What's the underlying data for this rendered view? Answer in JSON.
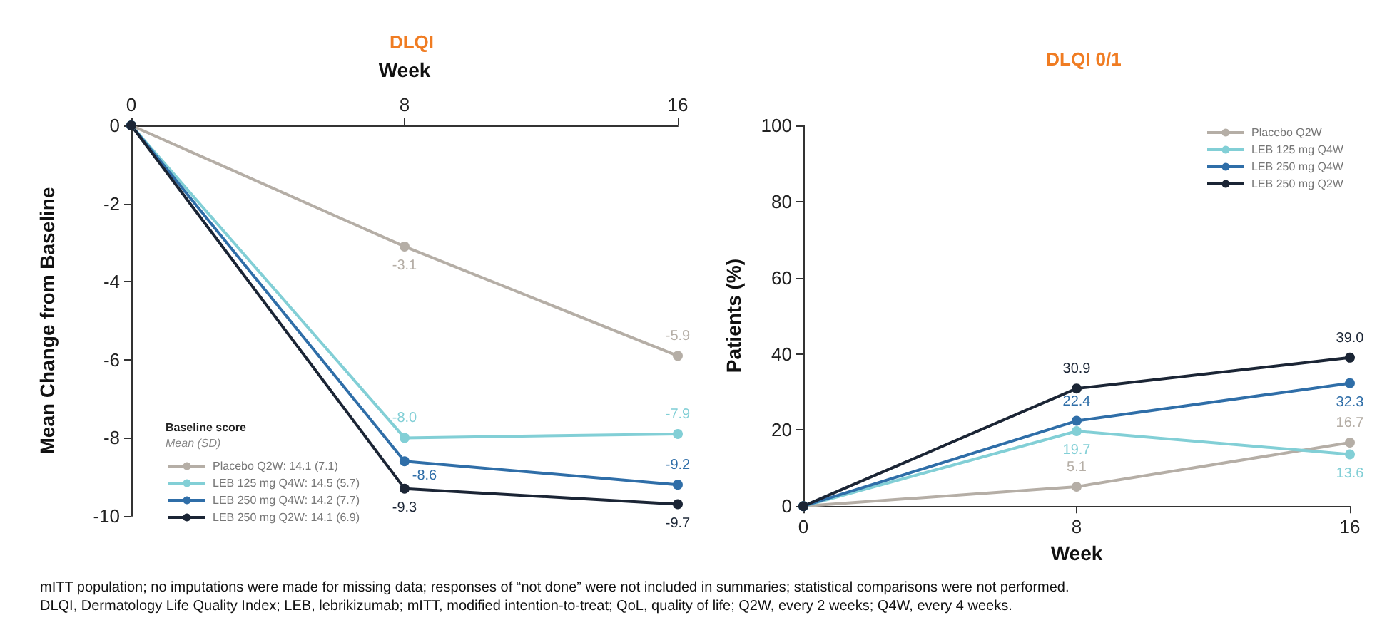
{
  "chart_data": [
    {
      "type": "line",
      "title": "DLQI",
      "xlabel": "Week",
      "ylabel": "Mean Change from Baseline",
      "x": [
        0,
        8,
        16
      ],
      "xlim": [
        0,
        16
      ],
      "xticks": [
        0,
        8,
        16
      ],
      "ylim": [
        -10,
        0
      ],
      "yticks": [
        -10,
        -8,
        -6,
        -4,
        -2,
        0
      ],
      "legend": "bottom left",
      "legend_title": "Baseline score",
      "annotations": [
        "Mean (SD)"
      ],
      "marker": "circle",
      "grid": false,
      "series": [
        {
          "name": "Placebo Q2W: 14.1 (7.1)",
          "color": "#b5aea6",
          "values": [
            0,
            -3.1,
            -5.9
          ],
          "value_labels": [
            null,
            "-3.1",
            "-5.9"
          ]
        },
        {
          "name": "LEB 125 mg Q4W: 14.5 (5.7)",
          "color": "#82cfd6",
          "values": [
            0,
            -8.0,
            -7.9
          ],
          "value_labels": [
            null,
            "-8.0",
            "-7.9"
          ]
        },
        {
          "name": "LEB 250 mg Q4W: 14.2 (7.7)",
          "color": "#2f6ea8",
          "values": [
            0,
            -8.6,
            -9.2
          ],
          "value_labels": [
            null,
            "-8.6",
            "-9.2"
          ]
        },
        {
          "name": "LEB 250 mg Q2W: 14.1 (6.9)",
          "color": "#1b2535",
          "values": [
            0,
            -9.3,
            -9.7
          ],
          "value_labels": [
            null,
            "-9.3",
            "-9.7"
          ]
        }
      ]
    },
    {
      "type": "line",
      "title": "DLQI 0/1",
      "xlabel": "Week",
      "ylabel": "Patients (%)",
      "x": [
        0,
        8,
        16
      ],
      "xlim": [
        0,
        16
      ],
      "xticks": [
        0,
        8,
        16
      ],
      "ylim": [
        0,
        100
      ],
      "yticks": [
        0,
        20,
        40,
        60,
        80,
        100
      ],
      "legend": "top right",
      "marker": "circle",
      "grid": false,
      "annotations": [
        "mITT population; no imputations were made for missing data; responses of “not done” were not included in summaries; statistical comparisons were not performed.",
        "DLQI, Dermatology Life Quality Index; LEB, lebrikizumab; mITT, modified intention-to-treat; QoL, quality of life; Q2W, every 2 weeks; Q4W, every 4 weeks."
      ],
      "series": [
        {
          "name": "Placebo Q2W",
          "color": "#b5aea6",
          "values": [
            0,
            5.1,
            16.7
          ],
          "value_labels": [
            null,
            "5.1",
            "16.7"
          ]
        },
        {
          "name": "LEB 125 mg Q4W",
          "color": "#82cfd6",
          "values": [
            0,
            19.7,
            13.6
          ],
          "value_labels": [
            null,
            "19.7",
            "13.6"
          ]
        },
        {
          "name": "LEB 250 mg Q4W",
          "color": "#2f6ea8",
          "values": [
            0,
            22.4,
            32.3
          ],
          "value_labels": [
            null,
            "22.4",
            "32.3"
          ]
        },
        {
          "name": "LEB 250 mg Q2W",
          "color": "#1b2535",
          "values": [
            0,
            30.9,
            39.0
          ],
          "value_labels": [
            null,
            "30.9",
            "39.0"
          ]
        }
      ]
    }
  ]
}
